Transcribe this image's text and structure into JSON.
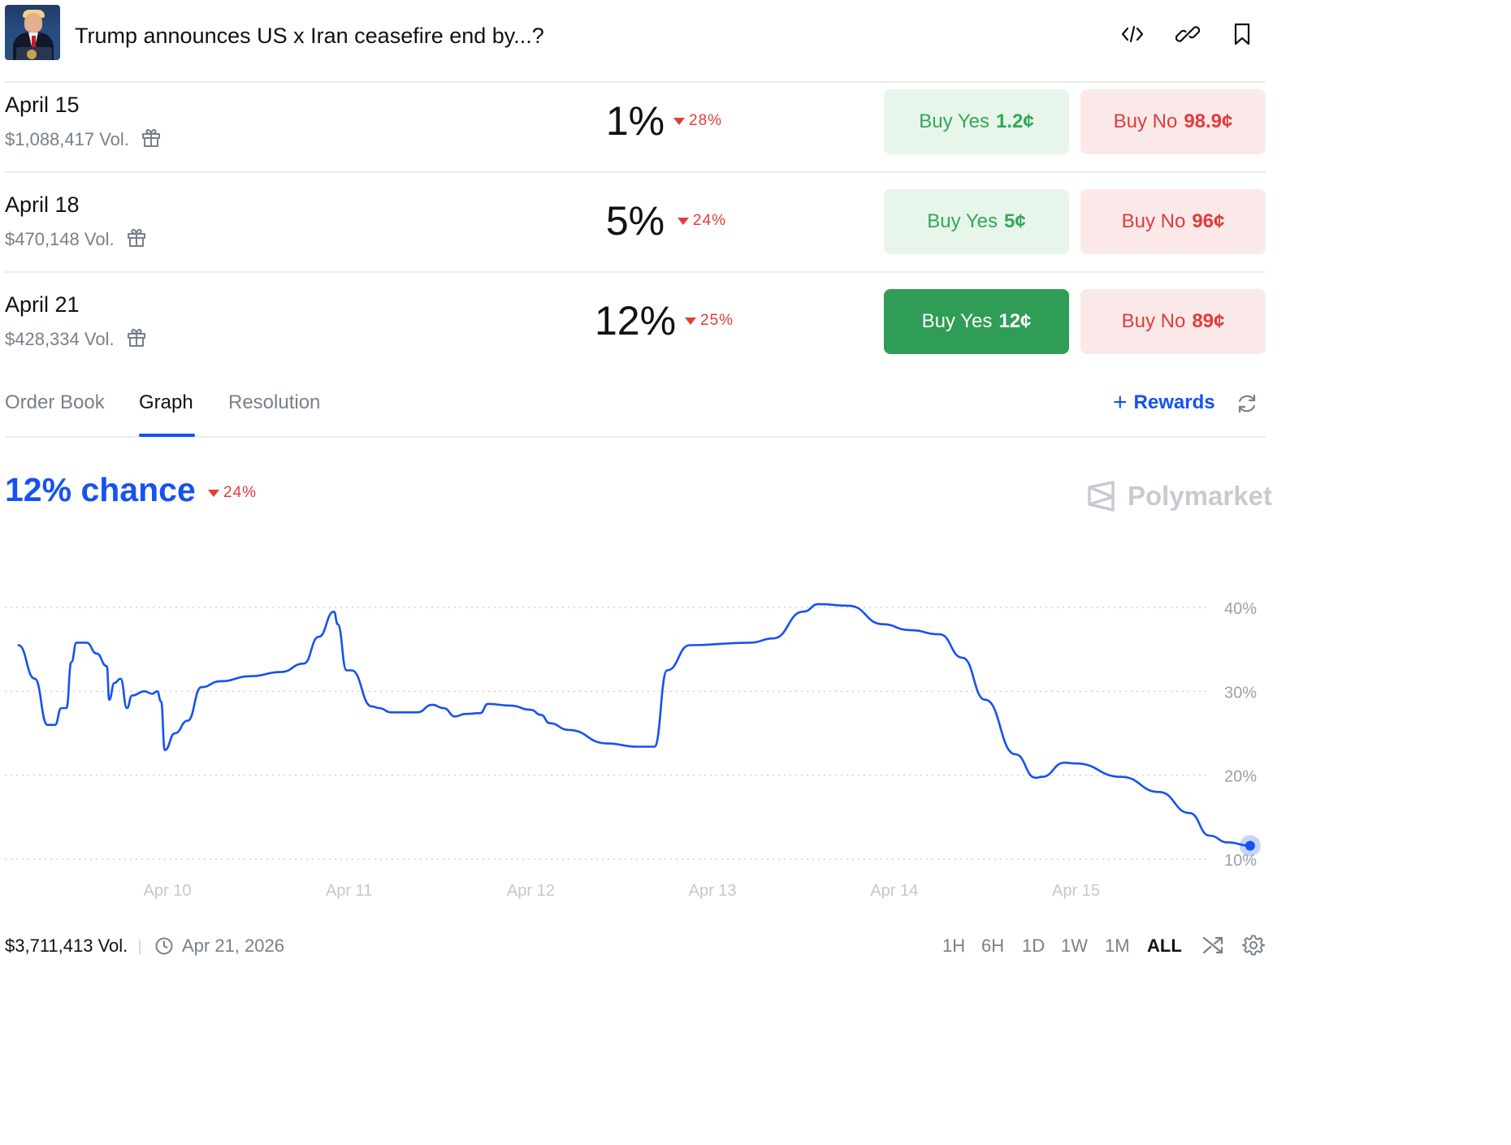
{
  "header": {
    "title": "Trump announces US x Iran ceasefire end by...?",
    "icons": [
      "code-embed-icon",
      "link-icon",
      "bookmark-icon"
    ]
  },
  "rows": [
    {
      "date": "April 15",
      "volume": "$1,088,417 Vol.",
      "percent": "1%",
      "change": "28%",
      "change_dir": "down",
      "yes_label": "Buy Yes",
      "yes_price": "1.2¢",
      "no_label": "Buy No",
      "no_price": "98.9¢",
      "yes_active": false
    },
    {
      "date": "April 18",
      "volume": "$470,148 Vol.",
      "percent": "5%",
      "change": "24%",
      "change_dir": "down",
      "yes_label": "Buy Yes",
      "yes_price": "5¢",
      "no_label": "Buy No",
      "no_price": "96¢",
      "yes_active": false
    },
    {
      "date": "April 21",
      "volume": "$428,334 Vol.",
      "percent": "12%",
      "change": "25%",
      "change_dir": "down",
      "yes_label": "Buy Yes",
      "yes_price": "12¢",
      "no_label": "Buy No",
      "no_price": "89¢",
      "yes_active": true
    }
  ],
  "tabs": [
    {
      "label": "Order Book",
      "active": false
    },
    {
      "label": "Graph",
      "active": true
    },
    {
      "label": "Resolution",
      "active": false
    }
  ],
  "rewards_label": "Rewards",
  "chance": {
    "label": "12% chance",
    "change": "24%"
  },
  "brand": "Polymarket",
  "colors": {
    "accent": "#1652f0",
    "green": "#31a859",
    "green_active": "#2f9d55",
    "red": "#e23b3b",
    "muted": "#77808a"
  },
  "chart_data": {
    "type": "line",
    "title": "",
    "xlabel": "",
    "ylabel": "",
    "x_ticks": [
      "Apr 10",
      "Apr 11",
      "Apr 12",
      "Apr 13",
      "Apr 14",
      "Apr 15"
    ],
    "y_ticks": [
      "10%",
      "20%",
      "30%",
      "40%"
    ],
    "ylim": [
      10,
      40
    ],
    "grid": true,
    "series": [
      {
        "color": "#1652f0",
        "points": [
          [
            "Apr 9 04:20",
            35.5
          ],
          [
            "Apr 9 06:30",
            31.5
          ],
          [
            "Apr 9 08:10",
            26.0
          ],
          [
            "Apr 9 09:10",
            26.0
          ],
          [
            "Apr 9 10:00",
            28.0
          ],
          [
            "Apr 9 10:40",
            28.0
          ],
          [
            "Apr 9 11:20",
            33.5
          ],
          [
            "Apr 9 12:00",
            35.8
          ],
          [
            "Apr 9 13:20",
            35.8
          ],
          [
            "Apr 9 14:40",
            34.5
          ],
          [
            "Apr 9 16:00",
            33.0
          ],
          [
            "Apr 9 16:20",
            29.0
          ],
          [
            "Apr 9 17:00",
            31.0
          ],
          [
            "Apr 9 17:50",
            31.5
          ],
          [
            "Apr 9 18:40",
            28.0
          ],
          [
            "Apr 9 19:20",
            29.5
          ],
          [
            "Apr 9 21:00",
            30.0
          ],
          [
            "Apr 9 22:00",
            29.7
          ],
          [
            "Apr 9 22:40",
            30.0
          ],
          [
            "Apr 9 23:10",
            28.8
          ],
          [
            "Apr 9 23:40",
            23.0
          ],
          [
            "Apr 10 01:00",
            25.0
          ],
          [
            "Apr 10 02:40",
            26.5
          ],
          [
            "Apr 10 04:30",
            30.5
          ],
          [
            "Apr 10 07:00",
            31.2
          ],
          [
            "Apr 10 11:00",
            31.8
          ],
          [
            "Apr 10 15:00",
            32.3
          ],
          [
            "Apr 10 18:00",
            33.3
          ],
          [
            "Apr 10 20:00",
            36.5
          ],
          [
            "Apr 10 22:00",
            39.5
          ],
          [
            "Apr 10 22:30",
            38.0
          ],
          [
            "Apr 10 23:40",
            32.5
          ],
          [
            "Apr 11 00:20",
            32.5
          ],
          [
            "Apr 11 03:00",
            28.2
          ],
          [
            "Apr 11 04:00",
            28.0
          ],
          [
            "Apr 11 05:30",
            27.5
          ],
          [
            "Apr 11 09:00",
            27.5
          ],
          [
            "Apr 11 11:00",
            28.4
          ],
          [
            "Apr 11 12:30",
            28.0
          ],
          [
            "Apr 11 14:00",
            27.0
          ],
          [
            "Apr 11 15:20",
            27.3
          ],
          [
            "Apr 11 17:20",
            27.4
          ],
          [
            "Apr 11 18:20",
            28.5
          ],
          [
            "Apr 11 21:20",
            28.3
          ],
          [
            "Apr 12 00:00",
            27.8
          ],
          [
            "Apr 12 01:20",
            27.2
          ],
          [
            "Apr 12 02:30",
            26.2
          ],
          [
            "Apr 12 05:00",
            25.4
          ],
          [
            "Apr 12 10:00",
            23.8
          ],
          [
            "Apr 12 14:00",
            23.4
          ],
          [
            "Apr 12 16:20",
            23.4
          ],
          [
            "Apr 12 18:00",
            32.5
          ],
          [
            "Apr 12 21:00",
            35.5
          ],
          [
            "Apr 13 05:00",
            35.8
          ],
          [
            "Apr 13 08:00",
            36.3
          ],
          [
            "Apr 13 12:00",
            39.5
          ],
          [
            "Apr 13 14:00",
            40.4
          ],
          [
            "Apr 13 18:00",
            40.2
          ],
          [
            "Apr 13 22:30",
            38.0
          ],
          [
            "Apr 14 02:00",
            37.3
          ],
          [
            "Apr 14 06:00",
            36.8
          ],
          [
            "Apr 14 09:00",
            34.0
          ],
          [
            "Apr 14 12:00",
            29.0
          ],
          [
            "Apr 14 16:00",
            22.5
          ],
          [
            "Apr 14 18:40",
            19.7
          ],
          [
            "Apr 14 19:30",
            19.8
          ],
          [
            "Apr 14 22:30",
            21.5
          ],
          [
            "Apr 15 00:00",
            21.4
          ],
          [
            "Apr 15 06:00",
            19.8
          ],
          [
            "Apr 15 11:00",
            18.0
          ],
          [
            "Apr 15 15:00",
            15.5
          ],
          [
            "Apr 15 17:40",
            12.8
          ],
          [
            "Apr 15 20:00",
            12.0
          ],
          [
            "Apr 15 23:00",
            11.6
          ]
        ]
      }
    ]
  },
  "footer": {
    "volume": "$3,711,413 Vol.",
    "date": "Apr 21, 2026",
    "ranges": [
      {
        "label": "1H",
        "active": false
      },
      {
        "label": "6H",
        "active": false
      },
      {
        "label": "1D",
        "active": false
      },
      {
        "label": "1W",
        "active": false
      },
      {
        "label": "1M",
        "active": false
      },
      {
        "label": "ALL",
        "active": true
      }
    ]
  }
}
